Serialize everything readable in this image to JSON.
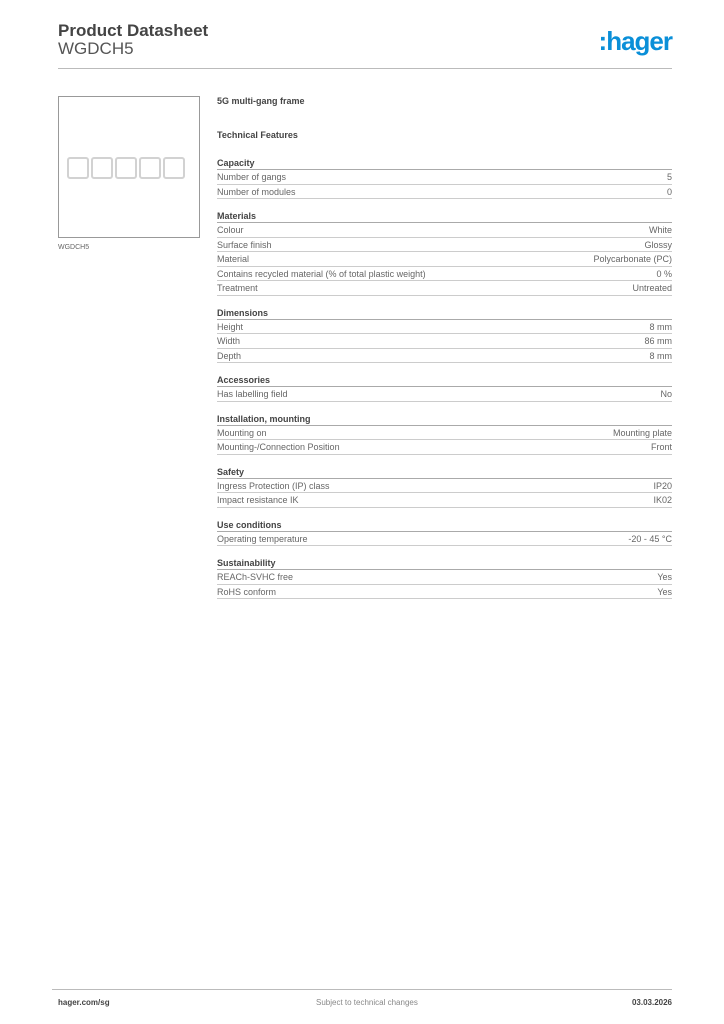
{
  "header": {
    "title": "Product Datasheet",
    "product_code": "WGDCH5",
    "logo_text": ":hager"
  },
  "image": {
    "caption": "WGDCH5",
    "gang_count": 5
  },
  "description": "5G multi-gang frame",
  "technical_features_label": "Technical Features",
  "sections": [
    {
      "title": "Capacity",
      "rows": [
        [
          "Number of gangs",
          "5"
        ],
        [
          "Number of modules",
          "0"
        ]
      ]
    },
    {
      "title": "Materials",
      "rows": [
        [
          "Colour",
          "White"
        ],
        [
          "Surface finish",
          "Glossy"
        ],
        [
          "Material",
          "Polycarbonate (PC)"
        ],
        [
          "Contains recycled material (% of total plastic weight)",
          "0 %"
        ],
        [
          "Treatment",
          "Untreated"
        ]
      ]
    },
    {
      "title": "Dimensions",
      "rows": [
        [
          "Height",
          "8 mm"
        ],
        [
          "Width",
          "86 mm"
        ],
        [
          "Depth",
          "8 mm"
        ]
      ]
    },
    {
      "title": "Accessories",
      "rows": [
        [
          "Has labelling field",
          "No"
        ]
      ]
    },
    {
      "title": "Installation, mounting",
      "rows": [
        [
          "Mounting on",
          "Mounting plate"
        ],
        [
          "Mounting-/Connection Position",
          "Front"
        ]
      ]
    },
    {
      "title": "Safety",
      "rows": [
        [
          "Ingress Protection (IP) class",
          "IP20"
        ],
        [
          "Impact resistance IK",
          "IK02"
        ]
      ]
    },
    {
      "title": "Use conditions",
      "rows": [
        [
          "Operating temperature",
          "-20 - 45 °C"
        ]
      ]
    },
    {
      "title": "Sustainability",
      "rows": [
        [
          "REACh-SVHC free",
          "Yes"
        ],
        [
          "RoHS conform",
          "Yes"
        ]
      ]
    }
  ],
  "footer": {
    "website": "hager.com/sg",
    "notice": "Subject to technical changes",
    "date": "03.03.2026"
  },
  "colors": {
    "brand": "#0a8fd8"
  }
}
